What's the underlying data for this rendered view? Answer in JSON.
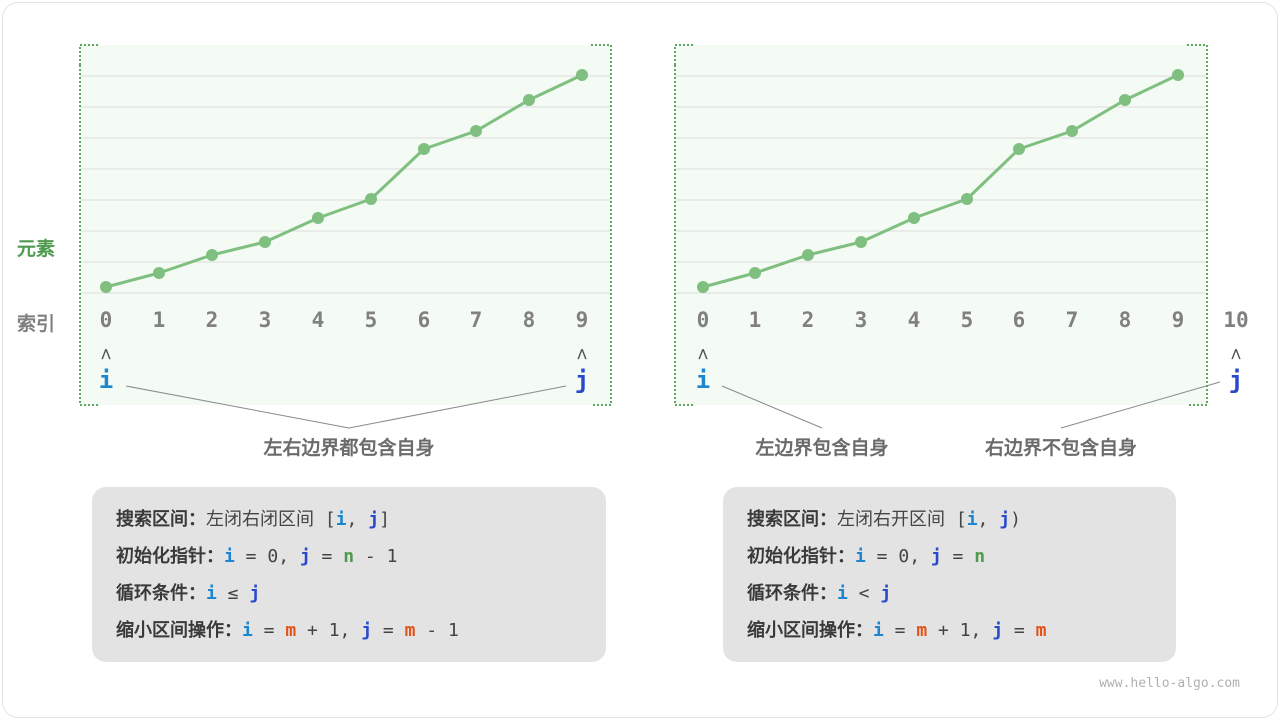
{
  "side_labels": {
    "element": "元素",
    "index": "索引"
  },
  "colors": {
    "line": "#7fbf7f",
    "grid": "#dcdcdc",
    "i": "#1e86cf",
    "j": "#2a48cc",
    "n": "#4f9a4f",
    "m": "#e2531c",
    "text": "#444444"
  },
  "left": {
    "indices": [
      "0",
      "1",
      "2",
      "3",
      "4",
      "5",
      "6",
      "7",
      "8",
      "9"
    ],
    "pointer_i": "i",
    "pointer_j": "j",
    "arrow": "^",
    "caption": "左右边界都包含自身",
    "lines": [
      [
        {
          "t": "搜索区间：",
          "c": "lbl"
        },
        {
          "t": "左闭右闭区间 [",
          "c": "text"
        },
        {
          "t": "i",
          "c": "i"
        },
        {
          "t": ", ",
          "c": "text"
        },
        {
          "t": "j",
          "c": "j"
        },
        {
          "t": "]",
          "c": "text"
        }
      ],
      [
        {
          "t": "初始化指针：",
          "c": "lbl"
        },
        {
          "t": "i",
          "c": "i"
        },
        {
          "t": " = 0, ",
          "c": "text"
        },
        {
          "t": "j",
          "c": "j"
        },
        {
          "t": " = ",
          "c": "text"
        },
        {
          "t": "n",
          "c": "n"
        },
        {
          "t": " - 1",
          "c": "text"
        }
      ],
      [
        {
          "t": "循环条件：",
          "c": "lbl"
        },
        {
          "t": "i",
          "c": "i"
        },
        {
          "t": " ≤ ",
          "c": "text"
        },
        {
          "t": "j",
          "c": "j"
        }
      ],
      [
        {
          "t": "缩小区间操作：",
          "c": "lbl"
        },
        {
          "t": "i",
          "c": "i"
        },
        {
          "t": " = ",
          "c": "text"
        },
        {
          "t": "m",
          "c": "m"
        },
        {
          "t": " + 1, ",
          "c": "text"
        },
        {
          "t": "j",
          "c": "j"
        },
        {
          "t": " = ",
          "c": "text"
        },
        {
          "t": "m",
          "c": "m"
        },
        {
          "t": " - 1",
          "c": "text"
        }
      ]
    ]
  },
  "right": {
    "indices": [
      "0",
      "1",
      "2",
      "3",
      "4",
      "5",
      "6",
      "7",
      "8",
      "9",
      "10"
    ],
    "pointer_i": "i",
    "pointer_j": "j",
    "arrow": "^",
    "caption_left": "左边界包含自身",
    "caption_right": "右边界不包含自身",
    "lines": [
      [
        {
          "t": "搜索区间：",
          "c": "lbl"
        },
        {
          "t": "左闭右开区间 [",
          "c": "text"
        },
        {
          "t": "i",
          "c": "i"
        },
        {
          "t": ", ",
          "c": "text"
        },
        {
          "t": "j",
          "c": "j"
        },
        {
          "t": ")",
          "c": "text"
        }
      ],
      [
        {
          "t": "初始化指针：",
          "c": "lbl"
        },
        {
          "t": "i",
          "c": "i"
        },
        {
          "t": " = 0, ",
          "c": "text"
        },
        {
          "t": "j",
          "c": "j"
        },
        {
          "t": " = ",
          "c": "text"
        },
        {
          "t": "n",
          "c": "n"
        }
      ],
      [
        {
          "t": "循环条件：",
          "c": "lbl"
        },
        {
          "t": "i",
          "c": "i"
        },
        {
          "t": " < ",
          "c": "text"
        },
        {
          "t": "j",
          "c": "j"
        }
      ],
      [
        {
          "t": "缩小区间操作：",
          "c": "lbl"
        },
        {
          "t": "i",
          "c": "i"
        },
        {
          "t": " = ",
          "c": "text"
        },
        {
          "t": "m",
          "c": "m"
        },
        {
          "t": " + 1, ",
          "c": "text"
        },
        {
          "t": "j",
          "c": "j"
        },
        {
          "t": " = ",
          "c": "text"
        },
        {
          "t": "m",
          "c": "m"
        }
      ]
    ]
  },
  "watermark": "www.hello-algo.com"
}
